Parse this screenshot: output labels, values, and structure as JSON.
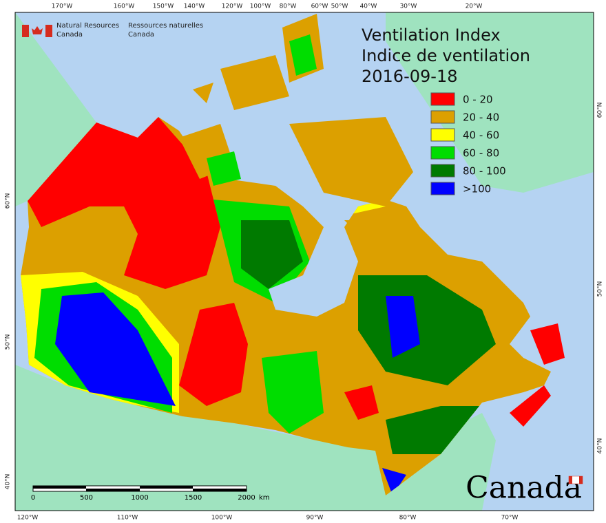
{
  "header": {
    "agency_en": [
      "Natural Resources",
      "Canada"
    ],
    "agency_fr": [
      "Ressources naturelles",
      "Canada"
    ]
  },
  "title": [
    "Ventilation Index",
    "Indice de ventilation",
    "2016-09-18"
  ],
  "legend": [
    {
      "label": "0 - 20",
      "color": "#ff0000"
    },
    {
      "label": "20 - 40",
      "color": "#dca000"
    },
    {
      "label": "40 - 60",
      "color": "#ffff00"
    },
    {
      "label": "60 - 80",
      "color": "#00dd00"
    },
    {
      "label": "80 - 100",
      "color": "#007a00"
    },
    {
      "label": ">100",
      "color": "#0000ff"
    }
  ],
  "graticule": {
    "top": [
      "170°W",
      "160°W",
      "150°W",
      "140°W",
      "120°W",
      "100°W",
      "80°W",
      "60°W",
      "50°W",
      "40°W",
      "30°W",
      "20°W"
    ],
    "bottom": [
      "120°W",
      "110°W",
      "100°W",
      "90°W",
      "80°W",
      "70°W"
    ],
    "left": [
      "60°N",
      "50°N",
      "40°N"
    ],
    "right": [
      "60°N",
      "50°N",
      "40°N"
    ]
  },
  "scale_bar": {
    "labels": [
      "0",
      "500",
      "1000",
      "1500",
      "2000"
    ],
    "unit": "km"
  },
  "wordmark": "Canada"
}
